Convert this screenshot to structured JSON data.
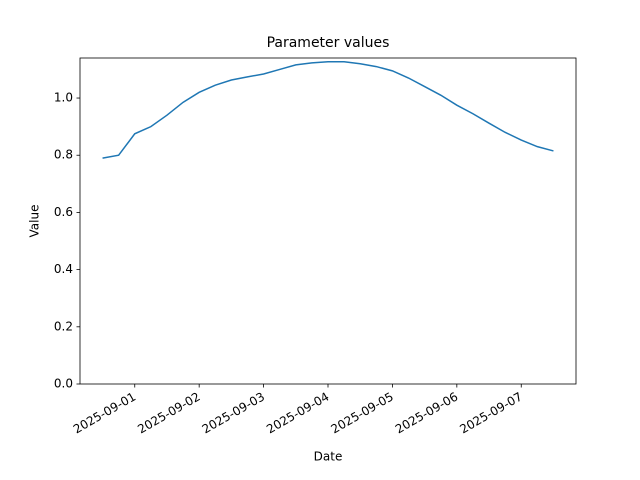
{
  "chart_data": {
    "type": "line",
    "title": "Parameter values",
    "x_label": "Date",
    "y_label": "Value",
    "x": [
      "2025-08-31T12:00",
      "2025-08-31T18:00",
      "2025-09-01T00:00",
      "2025-09-01T06:00",
      "2025-09-01T12:00",
      "2025-09-01T18:00",
      "2025-09-02T00:00",
      "2025-09-02T06:00",
      "2025-09-02T12:00",
      "2025-09-02T18:00",
      "2025-09-03T00:00",
      "2025-09-03T06:00",
      "2025-09-03T12:00",
      "2025-09-03T18:00",
      "2025-09-04T00:00",
      "2025-09-04T06:00",
      "2025-09-04T12:00",
      "2025-09-04T18:00",
      "2025-09-05T00:00",
      "2025-09-05T06:00",
      "2025-09-05T12:00",
      "2025-09-05T18:00",
      "2025-09-06T00:00",
      "2025-09-06T06:00",
      "2025-09-06T12:00",
      "2025-09-06T18:00",
      "2025-09-07T00:00",
      "2025-09-07T06:00",
      "2025-09-07T12:00"
    ],
    "series": [
      {
        "color": "#1f77b4",
        "values": [
          0.79,
          0.8,
          0.875,
          0.9,
          0.94,
          0.985,
          1.02,
          1.045,
          1.063,
          1.074,
          1.084,
          1.1,
          1.116,
          1.123,
          1.127,
          1.127,
          1.12,
          1.11,
          1.095,
          1.07,
          1.04,
          1.01,
          0.975,
          0.945,
          0.912,
          0.88,
          0.853,
          0.83,
          0.815
        ]
      }
    ],
    "xlim": [
      "2025-08-31T03:36",
      "2025-09-07T20:24"
    ],
    "xticks": [
      "2025-09-01",
      "2025-09-02",
      "2025-09-03",
      "2025-09-04",
      "2025-09-05",
      "2025-09-06",
      "2025-09-07"
    ],
    "ylim": [
      0,
      1.14
    ],
    "yticks": [
      {
        "value": 0,
        "label": "0.0"
      },
      0.2,
      0.4,
      0.6,
      0.8,
      {
        "value": 1,
        "label": "1.0"
      }
    ]
  }
}
